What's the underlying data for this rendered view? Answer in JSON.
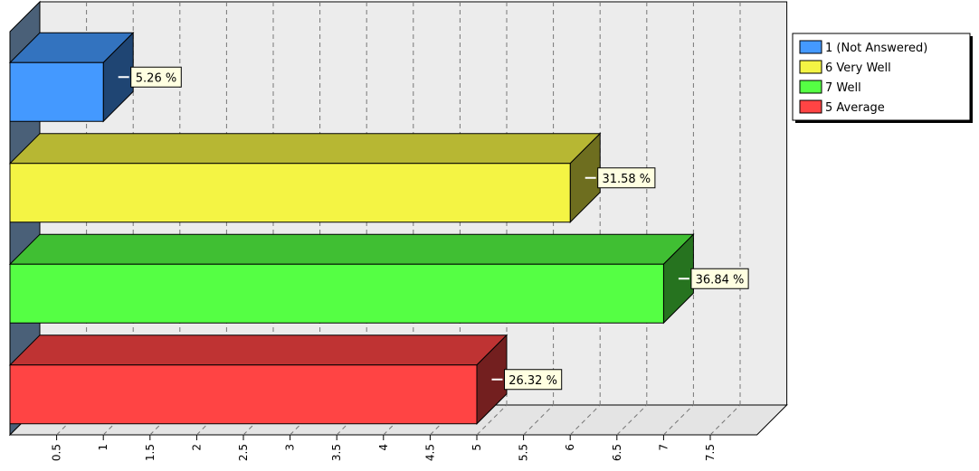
{
  "chart_data": {
    "type": "bar",
    "orientation": "horizontal",
    "three_d": true,
    "categories": [
      "1 (Not Answered)",
      "6 Very Well",
      "7 Well",
      "5 Average"
    ],
    "values": [
      1,
      6,
      7,
      5
    ],
    "data_labels": [
      "5.26 %",
      "31.58 %",
      "36.84 %",
      "26.32 %"
    ],
    "colors": [
      "#4499ff",
      "#f4f444",
      "#55ff44",
      "#ff4444"
    ],
    "x_ticks": [
      "0.5",
      "1",
      "1.5",
      "2",
      "2.5",
      "3",
      "3.5",
      "4",
      "4.5",
      "5",
      "5.5",
      "6",
      "6.5",
      "7",
      "7.5"
    ],
    "xlim": [
      0,
      8
    ],
    "grid": true,
    "legend": {
      "position": "top-right",
      "entries": [
        {
          "label": "1 (Not Answered)",
          "color": "#4499ff"
        },
        {
          "label": "6 Very Well",
          "color": "#f4f444"
        },
        {
          "label": "7 Well",
          "color": "#55ff44"
        },
        {
          "label": "5 Average",
          "color": "#ff4444"
        }
      ]
    }
  }
}
